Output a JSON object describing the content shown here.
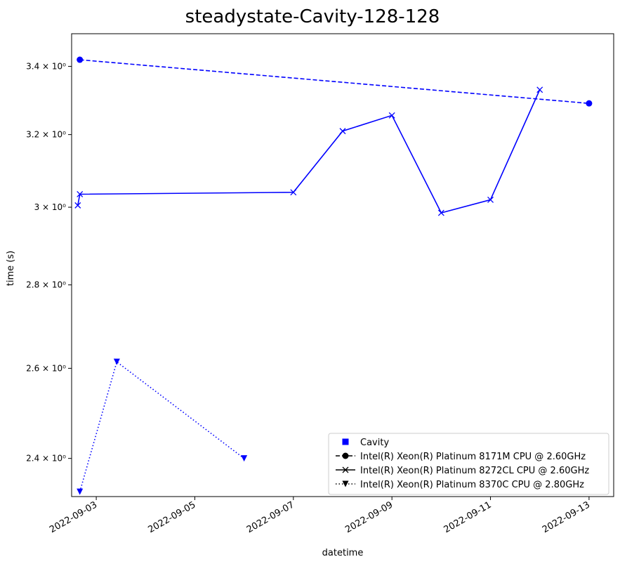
{
  "chart_data": {
    "type": "line",
    "title": "steadystate-Cavity-128-128",
    "xlabel": "datetime",
    "ylabel": "time (s)",
    "yscale": "log",
    "xlim": [
      "2022-09-02T12:00",
      "2022-09-13T12:00"
    ],
    "ylim": [
      2.32,
      3.5
    ],
    "x_ticks": [
      "2022-09-03",
      "2022-09-05",
      "2022-09-07",
      "2022-09-09",
      "2022-09-11",
      "2022-09-13"
    ],
    "y_ticks": [
      {
        "value": 2.4,
        "label": "2.4 × 10⁰"
      },
      {
        "value": 2.6,
        "label": "2.6 × 10⁰"
      },
      {
        "value": 2.8,
        "label": "2.8 × 10⁰"
      },
      {
        "value": 3.0,
        "label": "3 × 10⁰"
      },
      {
        "value": 3.2,
        "label": "3.2 × 10⁰"
      },
      {
        "value": 3.4,
        "label": "3.4 × 10⁰"
      }
    ],
    "grid": false,
    "legend_position": "lower-right",
    "legend_entries": [
      {
        "label": "Cavity",
        "marker": "square",
        "line": "none"
      },
      {
        "label": "Intel(R) Xeon(R) Platinum 8171M CPU @ 2.60GHz",
        "marker": "circle",
        "line": "dashed"
      },
      {
        "label": "Intel(R) Xeon(R) Platinum 8272CL CPU @ 2.60GHz",
        "marker": "x",
        "line": "solid"
      },
      {
        "label": "Intel(R) Xeon(R) Platinum 8370C CPU @ 2.80GHz",
        "marker": "triangle-down",
        "line": "dotted"
      }
    ],
    "color": "#0000ff",
    "series": [
      {
        "name": "Intel(R) Xeon(R) Platinum 8171M CPU @ 2.60GHz",
        "marker": "circle",
        "line": "dashed",
        "points": [
          {
            "x": "2022-09-02T16:00",
            "y": 3.42
          },
          {
            "x": "2022-09-13T00:00",
            "y": 3.29
          }
        ]
      },
      {
        "name": "Intel(R) Xeon(R) Platinum 8272CL CPU @ 2.60GHz",
        "marker": "x",
        "line": "solid",
        "points": [
          {
            "x": "2022-09-02T15:00",
            "y": 3.005
          },
          {
            "x": "2022-09-02T16:00",
            "y": 3.035
          },
          {
            "x": "2022-09-07T00:00",
            "y": 3.04
          },
          {
            "x": "2022-09-08T00:00",
            "y": 3.21
          },
          {
            "x": "2022-09-09T00:00",
            "y": 3.255
          },
          {
            "x": "2022-09-10T00:00",
            "y": 2.985
          },
          {
            "x": "2022-09-11T00:00",
            "y": 3.02
          },
          {
            "x": "2022-09-12T00:00",
            "y": 3.33
          }
        ]
      },
      {
        "name": "Intel(R) Xeon(R) Platinum 8370C CPU @ 2.80GHz",
        "marker": "triangle-down",
        "line": "dotted",
        "points": [
          {
            "x": "2022-09-02T16:00",
            "y": 2.33
          },
          {
            "x": "2022-09-03T10:00",
            "y": 2.615
          },
          {
            "x": "2022-09-06T00:00",
            "y": 2.4
          }
        ]
      }
    ]
  }
}
